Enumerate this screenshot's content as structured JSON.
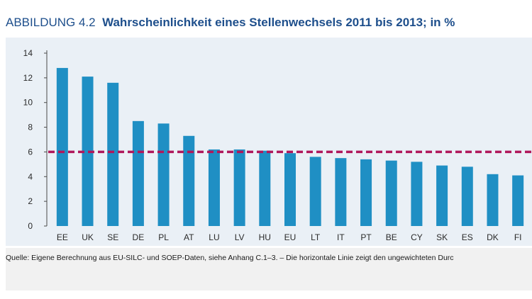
{
  "figure": {
    "label": "ABBILDUNG 4.2",
    "title": "Wahrscheinlichkeit eines Stellenwechsels 2011 bis 2013; in %"
  },
  "source_note": "Quelle: Eigene Berechnung aus EU-SILC- und SOEP-Daten, siehe Anhang C.1–3. – Die horizontale Linie zeigt den ungewichteten Durc",
  "colors": {
    "bar": "#1f8fc4",
    "reference_line": "#b0185c",
    "panel_bg": "#eaf0f6",
    "title": "#1e4f8c"
  },
  "chart_data": {
    "type": "bar",
    "title": "Wahrscheinlichkeit eines Stellenwechsels 2011 bis 2013; in %",
    "xlabel": "",
    "ylabel": "",
    "categories": [
      "EE",
      "UK",
      "SE",
      "DE",
      "PL",
      "AT",
      "LU",
      "LV",
      "HU",
      "EU",
      "LT",
      "IT",
      "PT",
      "BE",
      "CY",
      "SK",
      "ES",
      "DK",
      "FI"
    ],
    "values": [
      12.8,
      12.1,
      11.6,
      8.5,
      8.3,
      7.3,
      6.2,
      6.2,
      6.1,
      5.9,
      5.6,
      5.5,
      5.4,
      5.3,
      5.2,
      4.9,
      4.8,
      4.2,
      4.1
    ],
    "ylim": [
      0,
      14
    ],
    "yticks": [
      0,
      2,
      4,
      6,
      8,
      10,
      12,
      14
    ],
    "reference_line": {
      "value": 6.0,
      "style": "dashed"
    },
    "grid": false,
    "legend": "none"
  }
}
